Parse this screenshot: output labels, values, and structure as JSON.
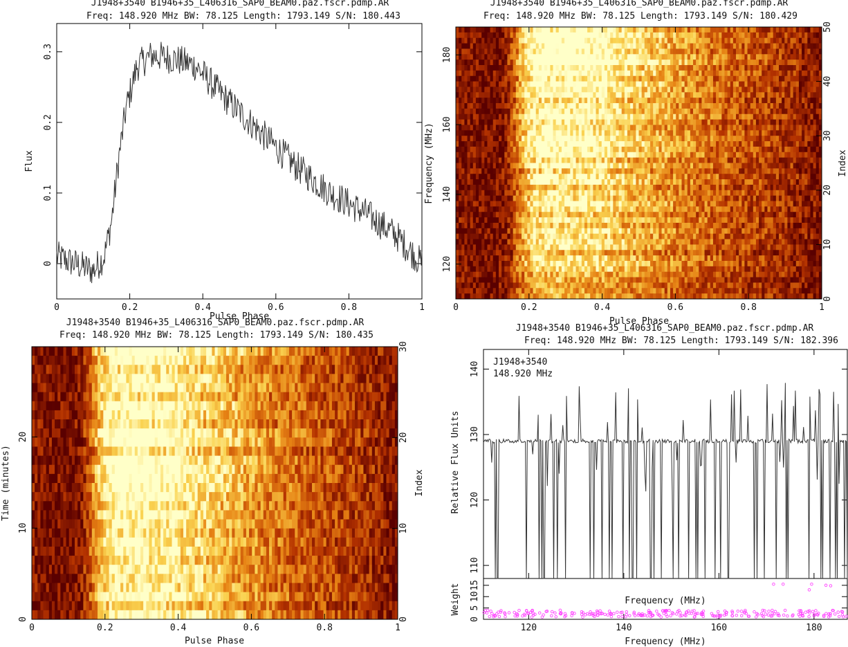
{
  "chart_data": [
    {
      "type": "line",
      "title": "J1948+3540  B1946+35_L406316_SAP0_BEAM0.paz.fscr.pdmp.AR",
      "subtitle": "Freq: 148.920 MHz BW: 78.125 Length: 1793.149 S/N: 180.443",
      "xlabel": "Pulse Phase",
      "ylabel": "Flux",
      "xlim": [
        0,
        1
      ],
      "ylim": [
        -0.05,
        0.34
      ],
      "xticks": [
        "0",
        "0.2",
        "0.4",
        "0.6",
        "0.8",
        "1"
      ],
      "yticks": [
        "0",
        "0.1",
        "0.2",
        "0.3"
      ],
      "color": "#333333",
      "profile_keypoints": {
        "x": [
          0.0,
          0.05,
          0.1,
          0.13,
          0.15,
          0.17,
          0.19,
          0.22,
          0.26,
          0.32,
          0.38,
          0.45,
          0.55,
          0.65,
          0.75,
          0.85,
          0.93,
          1.0
        ],
        "y": [
          0.01,
          0.0,
          -0.01,
          0.01,
          0.06,
          0.15,
          0.22,
          0.28,
          0.295,
          0.29,
          0.28,
          0.24,
          0.19,
          0.14,
          0.1,
          0.07,
          0.04,
          0.0
        ]
      }
    },
    {
      "type": "heatmap",
      "title": "J1948+3540  B1946+35_L406316_SAP0_BEAM0.paz.fscr.pdmp.AR",
      "subtitle": "Freq: 148.920 MHz BW: 78.125 Length: 1793.149 S/N: 180.429",
      "xlabel": "Pulse Phase",
      "ylabel": "Frequency (MHz)",
      "y2label": "Index",
      "xlim": [
        0,
        1
      ],
      "ylim": [
        110,
        188
      ],
      "y2lim": [
        0,
        50
      ],
      "xticks": [
        "0",
        "0.2",
        "0.4",
        "0.6",
        "0.8",
        "1"
      ],
      "yticks": [
        "120",
        "140",
        "160",
        "180"
      ],
      "y2ticks": [
        "0",
        "10",
        "20",
        "30",
        "40",
        "50"
      ],
      "colormap": "heat"
    },
    {
      "type": "heatmap",
      "title": "J1948+3540  B1946+35_L406316_SAP0_BEAM0.paz.fscr.pdmp.AR",
      "subtitle": "Freq: 148.920 MHz BW: 78.125 Length: 1793.149 S/N: 180.435",
      "xlabel": "Pulse Phase",
      "ylabel": "Time (minutes)",
      "y2label": "Index",
      "xlim": [
        0,
        1
      ],
      "ylim": [
        0,
        29.9
      ],
      "y2lim": [
        0,
        30
      ],
      "xticks": [
        "0",
        "0.2",
        "0.4",
        "0.6",
        "0.8",
        "1"
      ],
      "yticks": [
        "0",
        "10",
        "20"
      ],
      "y2ticks": [
        "0",
        "10",
        "20",
        "30"
      ],
      "colormap": "heat"
    },
    {
      "type": "line",
      "title": "J1948+3540  B1946+35_L406316_SAP0_BEAM0.paz.fscr.pdmp.AR",
      "subtitle": "Freq: 148.920 MHz BW: 78.125 Length: 1793.149 S/N: 182.396",
      "annotation": [
        "J1948+3540",
        "148.920 MHz"
      ],
      "xlabel": "Frequency (MHz)",
      "ylabel": "Relative Flux Units",
      "xlim": [
        110.5,
        187
      ],
      "ylim": [
        108,
        143
      ],
      "xticks": [
        "120",
        "140",
        "160",
        "180"
      ],
      "yticks": [
        "110",
        "120",
        "130",
        "140"
      ],
      "baseline": 129,
      "color": "#333333",
      "weights": {
        "type": "scatter",
        "xlabel": "Frequency (MHz)",
        "ylabel": "Weight",
        "ylim": [
          0,
          18
        ],
        "yticks": [
          "0",
          "5",
          "10",
          "15"
        ],
        "color": "#ff44ff",
        "typical_range": [
          1,
          4
        ],
        "outliers": [
          {
            "x": 171.5,
            "y": 15.5
          },
          {
            "x": 173.5,
            "y": 15.5
          },
          {
            "x": 179.0,
            "y": 13.0
          },
          {
            "x": 179.5,
            "y": 15.5
          },
          {
            "x": 182.5,
            "y": 15.0
          },
          {
            "x": 183.5,
            "y": 14.8
          }
        ]
      }
    }
  ]
}
